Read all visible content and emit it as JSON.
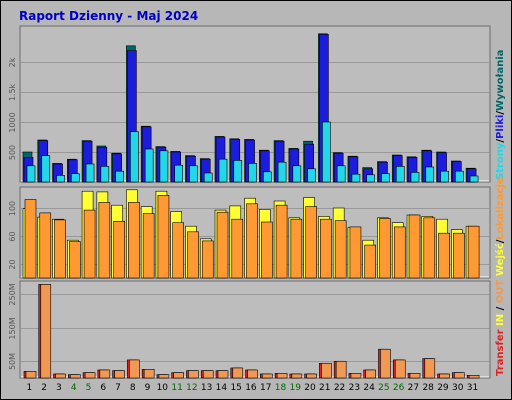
{
  "chart_data": [
    {
      "type": "bar",
      "title": "Raport Dzienny -  Maj 2024",
      "panel": "top",
      "categories": [
        "1",
        "2",
        "3",
        "4",
        "5",
        "6",
        "7",
        "8",
        "9",
        "10",
        "11",
        "12",
        "13",
        "14",
        "15",
        "16",
        "17",
        "18",
        "19",
        "20",
        "21",
        "22",
        "23",
        "24",
        "25",
        "26",
        "27",
        "28",
        "29",
        "30",
        "31"
      ],
      "ylim": [
        0,
        2600
      ],
      "yticks": [
        500,
        1000,
        1500,
        2000
      ],
      "ytick_labels": [
        "500",
        "1000",
        "1.5k",
        "2k"
      ],
      "side_labels": [
        "Wywołania",
        "/",
        "Pliki",
        "/",
        "Strony"
      ],
      "series": [
        {
          "name": "Wywołania",
          "color": "#006666",
          "values": [
            500,
            700,
            310,
            380,
            690,
            600,
            480,
            2270,
            930,
            590,
            510,
            440,
            390,
            760,
            720,
            710,
            530,
            690,
            560,
            680,
            2470,
            490,
            430,
            240,
            340,
            450,
            420,
            530,
            500,
            350,
            230
          ]
        },
        {
          "name": "Pliki",
          "color": "#1c1cdc",
          "values": [
            410,
            690,
            300,
            370,
            680,
            580,
            470,
            2190,
            920,
            580,
            500,
            430,
            380,
            750,
            710,
            700,
            520,
            680,
            550,
            630,
            2460,
            480,
            420,
            220,
            330,
            440,
            410,
            520,
            490,
            340,
            220
          ]
        },
        {
          "name": "Strony",
          "color": "#22d8e8",
          "values": [
            270,
            440,
            110,
            140,
            300,
            260,
            180,
            840,
            550,
            520,
            280,
            270,
            150,
            380,
            360,
            310,
            170,
            330,
            270,
            220,
            1000,
            270,
            130,
            120,
            140,
            260,
            160,
            250,
            180,
            180,
            100
          ]
        }
      ]
    },
    {
      "type": "bar",
      "panel": "middle",
      "categories": [
        "1",
        "2",
        "3",
        "4",
        "5",
        "6",
        "7",
        "8",
        "9",
        "10",
        "11",
        "12",
        "13",
        "14",
        "15",
        "16",
        "17",
        "18",
        "19",
        "20",
        "21",
        "22",
        "23",
        "24",
        "25",
        "26",
        "27",
        "28",
        "29",
        "30",
        "31"
      ],
      "ylim": [
        0,
        130
      ],
      "yticks": [
        20,
        60,
        100
      ],
      "ytick_labels": [
        "20",
        "60",
        "100"
      ],
      "side_labels": [
        "Wejść",
        "/",
        "Lokalizacje"
      ],
      "series": [
        {
          "name": "Wejść",
          "color": "#ffff33",
          "values": [
            99,
            87,
            84,
            54,
            124,
            123,
            104,
            126,
            102,
            124,
            95,
            74,
            56,
            97,
            103,
            114,
            98,
            110,
            86,
            115,
            88,
            100,
            72,
            54,
            86,
            79,
            90,
            88,
            84,
            69,
            74
          ]
        },
        {
          "name": "Lokalizacje",
          "color": "#ff9933",
          "values": [
            112,
            93,
            83,
            52,
            97,
            108,
            81,
            108,
            92,
            118,
            79,
            66,
            53,
            94,
            84,
            106,
            80,
            104,
            84,
            102,
            84,
            82,
            73,
            47,
            85,
            73,
            90,
            86,
            64,
            64,
            74
          ]
        }
      ]
    },
    {
      "type": "bar",
      "panel": "bottom",
      "categories": [
        "1",
        "2",
        "3",
        "4",
        "5",
        "6",
        "7",
        "8",
        "9",
        "10",
        "11",
        "12",
        "13",
        "14",
        "15",
        "16",
        "17",
        "18",
        "19",
        "20",
        "21",
        "22",
        "23",
        "24",
        "25",
        "26",
        "27",
        "28",
        "29",
        "30",
        "31"
      ],
      "weekend_days": [
        "4",
        "5",
        "11",
        "12",
        "18",
        "19",
        "25",
        "26"
      ],
      "ylim": [
        0,
        290
      ],
      "yticks": [
        50,
        150,
        250
      ],
      "ytick_labels": [
        "50M",
        "150M",
        "250M"
      ],
      "side_labels": [
        "Transfer",
        "IN",
        "/",
        "OUT"
      ],
      "series": [
        {
          "name": "IN",
          "color": "#dd2222",
          "values": [
            20,
            280,
            12,
            10,
            16,
            24,
            22,
            54,
            26,
            10,
            16,
            22,
            22,
            22,
            30,
            24,
            12,
            14,
            12,
            12,
            44,
            50,
            14,
            24,
            86,
            54,
            14,
            58,
            12,
            16,
            8
          ]
        },
        {
          "name": "OUT",
          "color": "#ef9955",
          "values": [
            20,
            280,
            12,
            10,
            16,
            24,
            22,
            54,
            26,
            10,
            16,
            22,
            22,
            22,
            30,
            24,
            12,
            14,
            12,
            12,
            44,
            50,
            14,
            24,
            86,
            54,
            14,
            58,
            12,
            16,
            8
          ]
        }
      ]
    }
  ]
}
